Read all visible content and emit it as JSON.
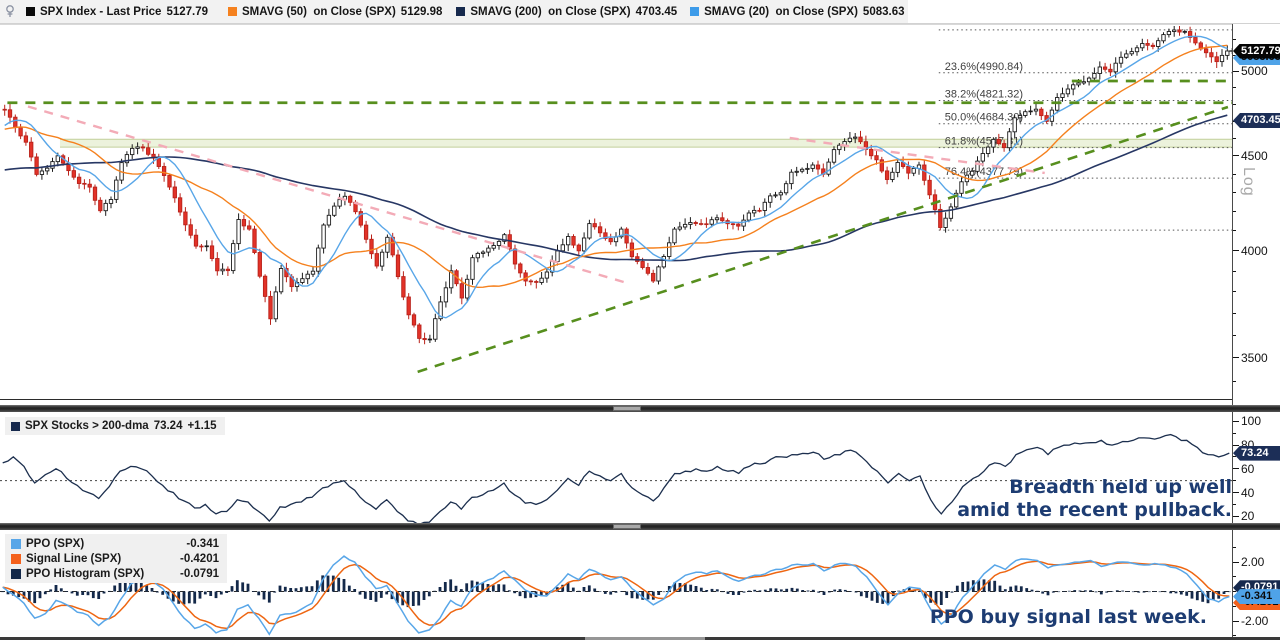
{
  "header": {
    "pin_icon": "pin-icon",
    "items": [
      {
        "label": "SPX Index - Last Price",
        "value": "5127.79",
        "swatch": "#0a0a0a"
      },
      {
        "label": "SMAVG (50)  on Close (SPX)",
        "value": "5129.98",
        "swatch": "#f5811e"
      },
      {
        "label": "SMAVG (200)  on Close (SPX)",
        "value": "4703.45",
        "swatch": "#16294d"
      },
      {
        "label": "SMAVG (20)  on Close (SPX)",
        "value": "5083.63",
        "swatch": "#3d9be9"
      }
    ]
  },
  "main": {
    "log_label": "Log",
    "ticks_major": [
      {
        "v": 5000,
        "label": "5000"
      },
      {
        "v": 4500,
        "label": "4500"
      },
      {
        "v": 4000,
        "label": "4000"
      },
      {
        "v": 3500,
        "label": "3500"
      }
    ],
    "ticks_minor": [
      5200,
      5100,
      4900,
      4800,
      4700,
      4600,
      4400,
      4300,
      4200,
      4100,
      3900,
      3800,
      3700,
      3600,
      3400
    ],
    "tags": [
      {
        "value": 5083.63,
        "label": "5083.63",
        "bg": "#4fa3e8",
        "fg": "#0a0a0a",
        "z": 3
      },
      {
        "value": 4703.45,
        "label": "4703.45",
        "bg": "#1c2e57",
        "fg": "#ffffff",
        "z": 3
      },
      {
        "value": 5127.79,
        "label": "5127.79",
        "bg": "#050505",
        "fg": "#ffffff",
        "z": 4
      }
    ]
  },
  "panel2": {
    "legend": {
      "label": "SPX Stocks > 200-dma",
      "value": "73.24",
      "change": "+1.15",
      "swatch": "#16294d"
    },
    "annotation": {
      "line1": "Breadth held up well",
      "line2": "amid the recent pullback."
    },
    "ticks_major": [
      {
        "v": 100,
        "label": "100"
      },
      {
        "v": 80,
        "label": "80"
      },
      {
        "v": 60,
        "label": "60"
      },
      {
        "v": 40,
        "label": "40"
      },
      {
        "v": 20,
        "label": "20"
      }
    ],
    "ticks_minor": [
      90,
      70,
      50,
      30
    ],
    "tags": [
      {
        "value": 73.24,
        "label": "73.24",
        "bg": "#1c2e57",
        "fg": "#ffffff",
        "z": 4
      }
    ]
  },
  "panel3": {
    "legend": {
      "rows": [
        {
          "label": "PPO (SPX)",
          "value": "-0.341",
          "swatch": "#58a6e8"
        },
        {
          "label": "Signal Line (SPX)",
          "value": "-0.4201",
          "swatch": "#f4611c"
        },
        {
          "label": "PPO Histogram (SPX)",
          "value": "-0.0791",
          "swatch": "#14294a"
        }
      ]
    },
    "annotation": "PPO buy signal last week.",
    "ticks_major": [
      {
        "v": 2,
        "label": "2.00"
      },
      {
        "v": -2,
        "label": "-2.00"
      }
    ],
    "ticks_minor": [
      3,
      1,
      0,
      -1,
      -3
    ],
    "tags": [
      {
        "value": -0.0791,
        "label": "-0.0791",
        "bg": "#16294d",
        "fg": "#ffffff",
        "z": 3,
        "dy": -5
      },
      {
        "value": -0.4201,
        "label": "-0.4201",
        "bg": "#f4611c",
        "fg": "#0a0a0a",
        "z": 3,
        "dy": 5
      },
      {
        "value": -0.341,
        "label": "-0.341",
        "bg": "#4fa3e8",
        "fg": "#0a0a0a",
        "z": 4,
        "dy": 0
      }
    ]
  },
  "colors": {
    "candle_up": "#ffffff",
    "candle_up_border": "#1c1c1c",
    "candle_down": "#e23228",
    "candle_down_border": "#b9221a",
    "ma20": "#58a6e8",
    "ma50": "#f5811e",
    "ma200": "#273764",
    "breadth_line": "#1c2f4e",
    "ppo_line": "#58a6e8",
    "signal_line": "#ee6612",
    "histogram": "#14294a",
    "green_dash": "#578f1e",
    "pink_dash": "#f3abb7",
    "fib_line": "#555555",
    "band_fill": "#dde8c0",
    "band_edge": "#c2cf9a",
    "annotation": "#1d3c72"
  },
  "chart_data": [
    {
      "type": "candlestick",
      "title": "SPX Index - Last Price",
      "scale": "log",
      "ylim": [
        3330,
        5290
      ],
      "yticks": [
        5000,
        4500,
        4000,
        3500
      ],
      "last_price": 5127.79,
      "pre_2021_weekly_close": [
        4128,
        4180,
        4181,
        4233,
        4205,
        4174,
        4227,
        4156,
        4204,
        4230,
        4247,
        4280,
        4352,
        4327,
        4412,
        4396,
        4419,
        4442,
        4468,
        4536,
        4458,
        4470,
        4535,
        4433,
        4455,
        4357,
        4391,
        4605,
        4544,
        4698,
        4683,
        4598,
        4712,
        4538,
        4620,
        4674,
        4766
      ],
      "series_weekly_close": [
        4766,
        4663,
        4578,
        4398,
        4432,
        4501,
        4419,
        4349,
        4329,
        4204,
        4263,
        4463,
        4543,
        4546,
        4488,
        4392,
        4272,
        4131,
        4023,
        4024,
        3901,
        3902,
        4158,
        4109,
        3875,
        3675,
        3912,
        3825,
        3863,
        3899,
        4130,
        4228,
        4280,
        4199,
        4057,
        3924,
        4067,
        3873,
        3693,
        3586,
        3583,
        3753,
        3901,
        3771,
        3965,
        3993,
        4026,
        4080,
        3934,
        3852,
        3845,
        3895,
        3999,
        4071,
        3999,
        4137,
        4090,
        4045,
        4109,
        3970,
        3917,
        3852,
        3971,
        4109,
        4133,
        4137,
        4134,
        4167,
        4136,
        4124,
        4192,
        4205,
        4282,
        4299,
        4410,
        4426,
        4450,
        4399,
        4536,
        4582,
        4607,
        4537,
        4479,
        4370,
        4464,
        4405,
        4450,
        4288,
        4117,
        4224,
        4358,
        4415,
        4514,
        4594,
        4547,
        4719,
        4755,
        4770,
        4698,
        4840,
        4891,
        4928,
        4958,
        5027,
        4997,
        5088,
        5124,
        5176,
        5157,
        5234,
        5264,
        5254,
        5180,
        5117,
        5061,
        5128
      ],
      "overlays": [
        {
          "name": "SMAVG (20) on Close (SPX)",
          "window_days": 20,
          "last": 5083.63
        },
        {
          "name": "SMAVG (50) on Close (SPX)",
          "window_days": 50,
          "last": 5129.98
        },
        {
          "name": "SMAVG (200) on Close (SPX)",
          "window_days": 200,
          "last": 4703.45
        }
      ],
      "fibonacci": {
        "x_start_frac": 0.762,
        "levels": [
          {
            "label": "23.6%(4990.84)",
            "price": 4990.84
          },
          {
            "label": "38.2%(4821.32)",
            "price": 4821.32
          },
          {
            "label": "50.0%(4684.30)",
            "price": 4684.3
          },
          {
            "label": "61.8%(4547.31)",
            "price": 4547.31
          },
          {
            "label": "76.4%(4377.79)",
            "price": 4377.79
          }
        ],
        "unlabeled_levels": [
          5264.85,
          4103.78
        ]
      },
      "green_hlines": [
        {
          "price": 4808,
          "x1": 0.006,
          "x2": 1.0
        },
        {
          "price": 4940,
          "x1": 0.87,
          "x2": 1.0
        }
      ],
      "green_trendline": {
        "x1": 0.339,
        "p1": 3440,
        "x2": 0.9967,
        "p2": 4783
      },
      "pink_trendlines": [
        {
          "x1": 0.0227,
          "p1": 4786,
          "x2": 0.5114,
          "p2": 3838
        },
        {
          "x1": 0.641,
          "p1": 4602,
          "x2": 0.848,
          "p2": 4406
        }
      ],
      "support_band": {
        "p1": 4550,
        "p2": 4595,
        "x1": 0.0487,
        "x2": 1.0
      }
    },
    {
      "type": "line",
      "title": "SPX Stocks > 200-dma",
      "last": 73.24,
      "change": "+1.15",
      "ylim": [
        13.5,
        107
      ],
      "yticks": [
        100,
        80,
        60,
        40,
        20
      ],
      "dotted_level": 50,
      "values": [
        65,
        70,
        62,
        48,
        55,
        60,
        52,
        46,
        40,
        35,
        45,
        58,
        62,
        60,
        54,
        46,
        40,
        33,
        27,
        30,
        22,
        24,
        34,
        32,
        24,
        16,
        28,
        30,
        32,
        36,
        44,
        48,
        50,
        42,
        32,
        26,
        34,
        24,
        16,
        13,
        15,
        24,
        32,
        26,
        36,
        38,
        42,
        48,
        38,
        31,
        30,
        34,
        42,
        52,
        46,
        58,
        54,
        50,
        56,
        44,
        38,
        33,
        44,
        56,
        58,
        60,
        58,
        62,
        58,
        56,
        62,
        64,
        68,
        70,
        72,
        73,
        74,
        68,
        72,
        75,
        74,
        66,
        58,
        48,
        56,
        50,
        54,
        34,
        22,
        32,
        45,
        52,
        58,
        65,
        62,
        72,
        76,
        78,
        72,
        78,
        80,
        81,
        82,
        84,
        80,
        83,
        84,
        86,
        85,
        88,
        87,
        84,
        78,
        72,
        70,
        73.24
      ]
    },
    {
      "type": "line+histogram",
      "title": "PPO",
      "series": [
        {
          "name": "PPO (SPX)",
          "last": -0.341
        },
        {
          "name": "Signal Line (SPX)",
          "last": -0.4201
        },
        {
          "name": "PPO Histogram (SPX)",
          "last": -0.0791
        }
      ],
      "ylim": [
        -3.08,
        4.1
      ],
      "yticks": [
        2,
        -2
      ],
      "zero_line": 0,
      "values_ppo": [
        0.3,
        -0.2,
        -0.8,
        -1.8,
        -1.5,
        -0.6,
        -0.9,
        -1.4,
        -1.6,
        -2.3,
        -1.8,
        -0.6,
        0.5,
        1.0,
        0.8,
        0.2,
        -0.8,
        -1.8,
        -2.5,
        -2.2,
        -2.8,
        -2.6,
        -1.2,
        -0.9,
        -1.8,
        -2.9,
        -1.6,
        -1.5,
        -1.2,
        -0.8,
        0.8,
        1.8,
        2.4,
        2.0,
        1.0,
        0.2,
        0.4,
        -0.8,
        -2.0,
        -2.8,
        -2.6,
        -1.8,
        -0.6,
        -1.0,
        0.2,
        0.6,
        0.9,
        1.4,
        0.8,
        0.1,
        -0.2,
        -0.3,
        0.4,
        1.2,
        0.8,
        1.5,
        1.2,
        0.8,
        1.0,
        0.2,
        -0.4,
        -0.9,
        -0.5,
        0.6,
        1.1,
        1.3,
        1.2,
        1.4,
        1.0,
        0.7,
        1.0,
        1.1,
        1.4,
        1.5,
        1.8,
        1.8,
        1.9,
        1.4,
        1.8,
        1.9,
        1.7,
        1.0,
        0.0,
        -0.9,
        -0.1,
        0.3,
        0.2,
        -1.2,
        -2.2,
        -1.6,
        -0.4,
        0.4,
        1.2,
        1.8,
        1.5,
        2.1,
        2.2,
        2.1,
        1.6,
        1.8,
        1.9,
        2.0,
        2.1,
        1.7,
        1.9,
        2.0,
        1.9,
        1.8,
        1.9,
        1.8,
        1.6,
        1.2,
        0.4,
        -0.5,
        -0.7,
        -0.341
      ]
    }
  ]
}
